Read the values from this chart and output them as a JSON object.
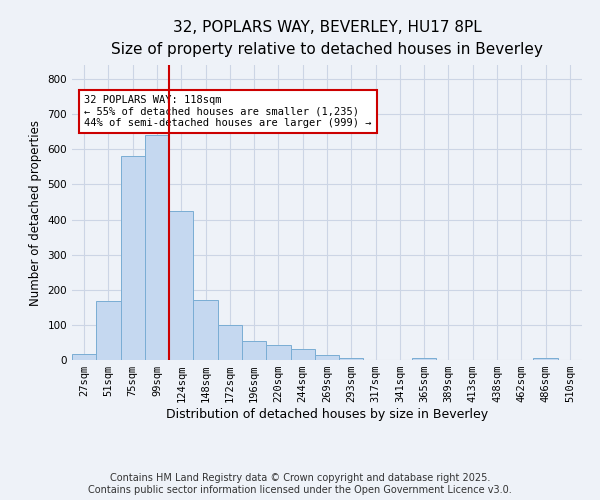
{
  "title_line1": "32, POPLARS WAY, BEVERLEY, HU17 8PL",
  "title_line2": "Size of property relative to detached houses in Beverley",
  "xlabel": "Distribution of detached houses by size in Beverley",
  "ylabel": "Number of detached properties",
  "bar_color": "#c5d8f0",
  "bar_edge_color": "#7aadd4",
  "categories": [
    "27sqm",
    "51sqm",
    "75sqm",
    "99sqm",
    "124sqm",
    "148sqm",
    "172sqm",
    "196sqm",
    "220sqm",
    "244sqm",
    "269sqm",
    "293sqm",
    "317sqm",
    "341sqm",
    "365sqm",
    "389sqm",
    "413sqm",
    "438sqm",
    "462sqm",
    "486sqm",
    "510sqm"
  ],
  "values": [
    17,
    168,
    580,
    640,
    425,
    172,
    100,
    55,
    44,
    30,
    13,
    7,
    0,
    0,
    5,
    0,
    0,
    0,
    0,
    7,
    0
  ],
  "vline_bin": 4,
  "vline_color": "#cc0000",
  "annotation_text": "32 POPLARS WAY: 118sqm\n← 55% of detached houses are smaller (1,235)\n44% of semi-detached houses are larger (999) →",
  "annotation_box_color": "#ffffff",
  "annotation_box_edge": "#cc0000",
  "ylim": [
    0,
    840
  ],
  "yticks": [
    0,
    100,
    200,
    300,
    400,
    500,
    600,
    700,
    800
  ],
  "grid_color": "#ccd5e5",
  "background_color": "#eef2f8",
  "footnote": "Contains HM Land Registry data © Crown copyright and database right 2025.\nContains public sector information licensed under the Open Government Licence v3.0.",
  "title_fontsize": 11,
  "subtitle_fontsize": 9.5,
  "footnote_fontsize": 7,
  "tick_fontsize": 7.5,
  "ylabel_fontsize": 8.5,
  "xlabel_fontsize": 9
}
